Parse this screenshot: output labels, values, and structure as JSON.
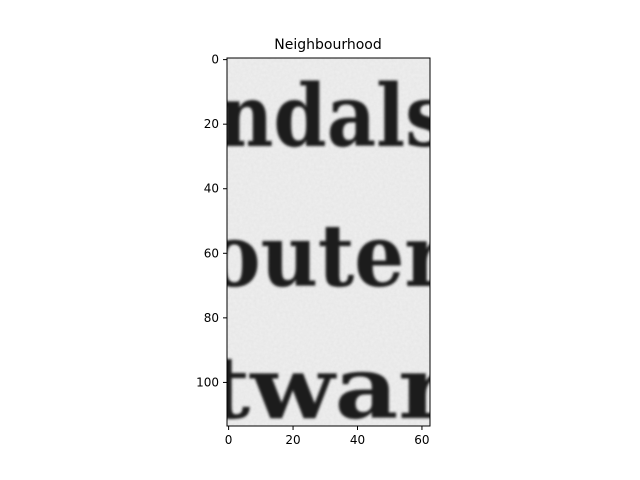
{
  "chart_data": {
    "type": "image",
    "title": "Neighbourhood",
    "x_ticks": [
      0,
      20,
      40,
      60
    ],
    "y_ticks": [
      0,
      20,
      40,
      60,
      80,
      100
    ],
    "xlim": [
      -0.5,
      62.5
    ],
    "ylim": [
      113.5,
      -0.5
    ],
    "colormap": "gray",
    "text_lines": [
      "ndals",
      "outer",
      "twar"
    ]
  },
  "colors": {
    "paper": "#efefef",
    "ink": "#1a1a1a",
    "axis": "#000000"
  }
}
